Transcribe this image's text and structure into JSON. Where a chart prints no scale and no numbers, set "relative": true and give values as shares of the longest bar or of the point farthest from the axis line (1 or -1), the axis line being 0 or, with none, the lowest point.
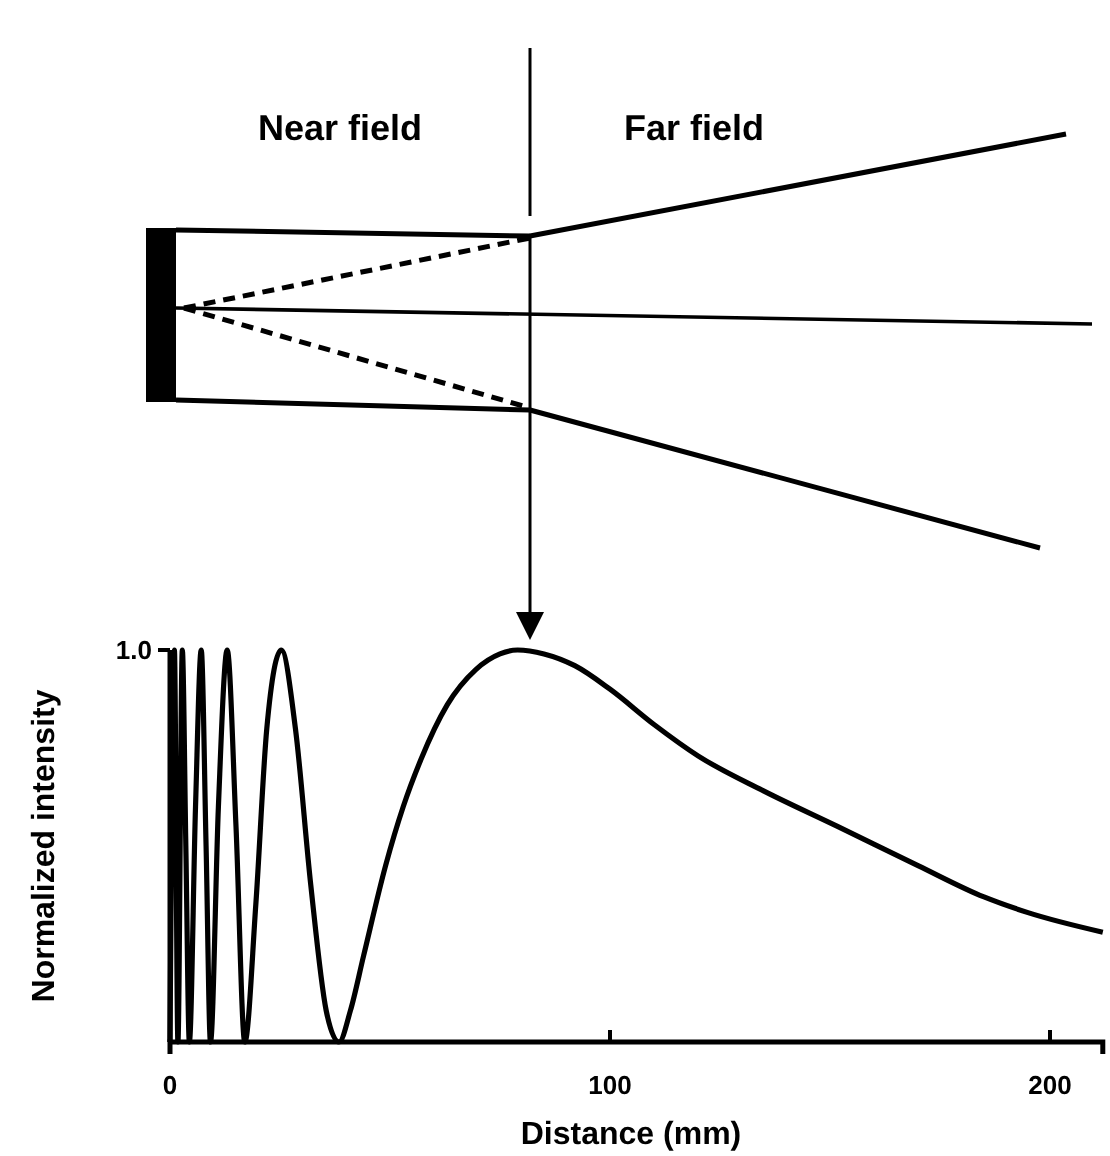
{
  "chart_data": {
    "type": "line",
    "xlabel": "Distance (mm)",
    "ylabel": "Normalized intensity",
    "relative": true,
    "annotations": [
      "Near field",
      "Far field",
      "1.0"
    ],
    "xlim": [
      0,
      212
    ],
    "xticks": [
      0,
      100,
      200
    ],
    "grid": false,
    "marker": "none",
    "line_style": "solid",
    "series": [
      {
        "color": "#000000",
        "x": [
          0,
          1,
          1.8,
          2.8,
          3.6,
          4.4,
          5.8,
          7.1,
          8.2,
          9.2,
          11,
          13,
          15,
          17,
          19.5,
          22,
          25.3,
          28.5,
          32,
          35.5,
          38.4,
          41,
          44,
          49,
          53,
          57,
          63,
          69.5,
          75,
          79,
          85,
          92,
          100,
          110,
          120,
          135,
          151.7,
          170,
          185,
          195,
          212
        ],
        "values": [
          0,
          1,
          0,
          1,
          0.5,
          0,
          0.6,
          1,
          0.5,
          0,
          0.6,
          1,
          0.55,
          0,
          0.35,
          0.8,
          1,
          0.8,
          0.4,
          0.08,
          0,
          0.08,
          0.22,
          0.45,
          0.6,
          0.72,
          0.86,
          0.95,
          0.99,
          1,
          0.99,
          0.96,
          0.9,
          0.81,
          0.73,
          0.64,
          0.55,
          0.45,
          0.37,
          0.33,
          0.28
        ]
      }
    ]
  }
}
